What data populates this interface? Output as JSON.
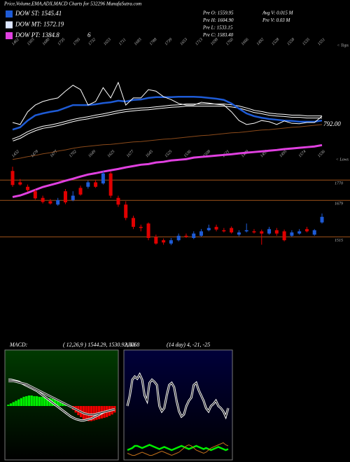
{
  "header": {
    "title": "Price,Volume,EMA,ADX,MACD Charts for 532296 MunafaSutra.com",
    "legend": [
      {
        "label": "DOW ST: 1545.41",
        "color": "#1e5bd6"
      },
      {
        "label": "DOW MT: 1572.19",
        "color": "#dde6ff"
      },
      {
        "label": "DOW PT: 1384.8",
        "color": "#e040e0"
      }
    ],
    "legend_note": "6",
    "info": [
      "Pre O: 1559.95",
      "Pre H: 1604.90",
      "Pre L: 1533.15",
      "Pre C: 1583.40"
    ],
    "volume_info": [
      "Avg V: 0.015 M",
      "Pre V: 0.03 M"
    ]
  },
  "chart_data": [
    {
      "type": "line",
      "ylim": [
        700,
        1000
      ],
      "yticks": [
        {
          "value": 792,
          "label": "792.00"
        }
      ],
      "tops_label": "< Tops",
      "lows_label": "< Lows",
      "high_labels": [
        1461,
        1503,
        1680,
        1735,
        1795,
        1732,
        1653,
        1711,
        1683,
        1788,
        1739,
        1653,
        1713,
        1698,
        1760,
        1666,
        1492,
        1528,
        1558,
        1535,
        1551
      ],
      "low_labels": [
        1432,
        1478,
        1677,
        1702,
        1649,
        1625,
        1677,
        1645,
        1525,
        1536,
        1508,
        1621,
        1489,
        1495,
        1495,
        1574,
        1536
      ],
      "series": [
        {
          "color": "#8b4a1a",
          "values": [
            704,
            707,
            711,
            714,
            718,
            721,
            725,
            728,
            732,
            735,
            737,
            739,
            741,
            742,
            744,
            746,
            748,
            749,
            751,
            753,
            755,
            756,
            758,
            760,
            762,
            764,
            765,
            767,
            769,
            771,
            772,
            774,
            776,
            778,
            779,
            781,
            783,
            785,
            786,
            788,
            790,
            792
          ]
        },
        {
          "color": "#ffffff",
          "values": [
            753,
            760,
            771,
            779,
            785,
            788,
            792,
            797,
            802,
            806,
            809,
            813,
            816,
            820,
            824,
            827,
            829,
            831,
            832,
            834,
            836,
            838,
            839,
            841,
            841,
            841,
            841,
            841,
            841,
            839,
            836,
            831,
            825,
            822,
            818,
            816,
            815,
            813,
            813,
            811,
            811,
            811
          ]
        },
        {
          "color": "#1e5bd6",
          "values": [
            779,
            785,
            802,
            815,
            820,
            824,
            827,
            834,
            841,
            841,
            841,
            843,
            846,
            848,
            852,
            850,
            854,
            855,
            859,
            861,
            861,
            861,
            862,
            862,
            862,
            861,
            859,
            857,
            854,
            845,
            832,
            820,
            813,
            809,
            806,
            804,
            802,
            801,
            799,
            799,
            799,
            802
          ]
        },
        {
          "color": "#ffffff",
          "values": [
            797,
            792,
            824,
            841,
            850,
            855,
            859,
            876,
            891,
            880,
            841,
            850,
            885,
            859,
            898,
            841,
            859,
            859,
            880,
            876,
            862,
            855,
            845,
            841,
            841,
            848,
            846,
            843,
            841,
            824,
            802,
            792,
            795,
            802,
            799,
            792,
            801,
            795,
            794,
            797,
            797,
            813
          ]
        }
      ]
    },
    {
      "type": "candlestick",
      "ylim": [
        1070,
        2390
      ],
      "yticks": [
        1770,
        1679,
        1515
      ],
      "up_color": "#1e5bd6",
      "down_color": "#e00000",
      "open": [
        1811,
        1760,
        1740,
        1720,
        1690,
        1675,
        1660,
        1720,
        1680,
        1735,
        1740,
        1760,
        1755,
        1800,
        1690,
        1660,
        1600,
        1560,
        1575,
        1515,
        1500,
        1485,
        1500,
        1520,
        1510,
        1520,
        1545,
        1560,
        1545,
        1555,
        1525,
        1540,
        1540,
        1540,
        1530,
        1545,
        1540,
        1520,
        1530,
        1550,
        1525,
        1580
      ],
      "close": [
        1748,
        1750,
        1725,
        1688,
        1672,
        1665,
        1680,
        1670,
        1700,
        1705,
        1760,
        1740,
        1800,
        1700,
        1660,
        1600,
        1560,
        1555,
        1510,
        1485,
        1490,
        1500,
        1520,
        1515,
        1530,
        1540,
        1555,
        1548,
        1540,
        1535,
        1535,
        1545,
        1535,
        1530,
        1550,
        1530,
        1500,
        1535,
        1540,
        1540,
        1545,
        1605
      ],
      "high": [
        1830,
        1775,
        1750,
        1728,
        1700,
        1685,
        1690,
        1730,
        1720,
        1745,
        1768,
        1772,
        1810,
        1808,
        1700,
        1675,
        1610,
        1570,
        1580,
        1525,
        1508,
        1510,
        1530,
        1530,
        1540,
        1550,
        1570,
        1570,
        1555,
        1562,
        1545,
        1575,
        1550,
        1548,
        1560,
        1555,
        1548,
        1545,
        1550,
        1560,
        1550,
        1620
      ],
      "low": [
        1740,
        1745,
        1718,
        1682,
        1665,
        1660,
        1655,
        1662,
        1675,
        1700,
        1732,
        1735,
        1750,
        1690,
        1650,
        1590,
        1550,
        1540,
        1500,
        1480,
        1480,
        1478,
        1495,
        1510,
        1505,
        1515,
        1540,
        1540,
        1535,
        1530,
        1518,
        1535,
        1530,
        1480,
        1525,
        1520,
        1495,
        1515,
        1525,
        1535,
        1520,
        1575
      ],
      "series": [
        {
          "color": "#e040e0",
          "values": [
            1694,
            1701,
            1713,
            1726,
            1739,
            1748,
            1757,
            1767,
            1776,
            1786,
            1795,
            1801,
            1808,
            1814,
            1820,
            1827,
            1833,
            1839,
            1842,
            1849,
            1852,
            1858,
            1861,
            1864,
            1871,
            1874,
            1877,
            1880,
            1883,
            1886,
            1890,
            1893,
            1896,
            1899,
            1902,
            1905,
            1909,
            1912,
            1915,
            1918,
            1921,
            1927
          ]
        }
      ]
    },
    {
      "type": "macd",
      "title": "MACD:",
      "subtitle": "( 12,26,9 ) 1544.29, 1530.92, 6.68",
      "ylim": [
        -80,
        80
      ],
      "pos_color": "#00ee00",
      "neg_color": "#ee0000",
      "histogram": [
        2,
        4,
        6,
        8,
        10,
        12,
        14,
        15,
        16,
        16,
        15,
        15,
        14,
        14,
        13,
        12,
        12,
        11,
        10,
        9,
        8,
        6,
        4,
        2,
        -2,
        -6,
        -10,
        -14,
        -17,
        -20,
        -22,
        -23,
        -23,
        -22,
        -21,
        -20,
        -19,
        -18,
        -17,
        -15,
        -13,
        -10
      ],
      "series": [
        {
          "color": "#ffffff",
          "values": [
            40,
            40,
            39,
            38,
            37,
            35,
            33,
            31,
            29,
            27,
            25,
            23,
            20,
            17,
            14,
            11,
            8,
            5,
            2,
            -1,
            -4,
            -7,
            -10,
            -13,
            -16,
            -18,
            -20,
            -21,
            -22,
            -22,
            -21,
            -20,
            -19,
            -17,
            -15,
            -13,
            -11,
            -9,
            -8,
            -7,
            -6,
            -5
          ]
        },
        {
          "color": "#dddddd",
          "values": [
            38,
            38,
            38,
            37,
            36,
            35,
            34,
            33,
            31,
            29,
            27,
            25,
            23,
            21,
            19,
            17,
            15,
            13,
            11,
            9,
            7,
            5,
            3,
            1,
            -1,
            -3,
            -5,
            -7,
            -9,
            -11,
            -12,
            -13,
            -13,
            -13,
            -12,
            -11,
            -10,
            -9,
            -8,
            -7,
            -6,
            -5
          ]
        }
      ]
    },
    {
      "type": "adx",
      "title": "ADX",
      "subtitle": "(14 day) 4, -21, -25",
      "ylim": [
        0,
        100
      ],
      "series": [
        {
          "color": "#ffffff",
          "values": [
            50,
            60,
            75,
            78,
            76,
            80,
            75,
            60,
            55,
            72,
            75,
            73,
            70,
            50,
            45,
            48,
            60,
            70,
            72,
            68,
            55,
            45,
            40,
            42,
            50,
            55,
            58,
            70,
            72,
            65,
            60,
            55,
            48,
            45,
            50,
            52,
            55,
            50,
            48,
            45,
            40,
            48
          ]
        },
        {
          "color": "#00ee00",
          "values": [
            8,
            9,
            10,
            12,
            12,
            11,
            10,
            11,
            12,
            13,
            12,
            11,
            10,
            9,
            10,
            11,
            10,
            9,
            8,
            9,
            10,
            11,
            12,
            11,
            10,
            9,
            10,
            11,
            12,
            11,
            10,
            9,
            10,
            9,
            8,
            9,
            10,
            11,
            10,
            9,
            8,
            9
          ]
        },
        {
          "color": "#c0701a",
          "values": [
            5,
            4,
            3,
            3,
            4,
            5,
            6,
            5,
            4,
            3,
            3,
            4,
            5,
            6,
            7,
            6,
            5,
            4,
            3,
            4,
            5,
            6,
            8,
            10,
            12,
            13,
            12,
            10,
            8,
            7,
            6,
            5,
            6,
            8,
            10,
            11,
            12,
            13,
            14,
            15,
            13,
            12
          ]
        }
      ]
    }
  ]
}
